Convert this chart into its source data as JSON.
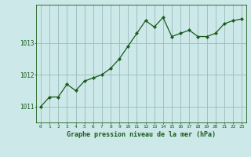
{
  "x": [
    0,
    1,
    2,
    3,
    4,
    5,
    6,
    7,
    8,
    9,
    10,
    11,
    12,
    13,
    14,
    15,
    16,
    17,
    18,
    19,
    20,
    21,
    22,
    23
  ],
  "y": [
    1011.0,
    1011.3,
    1011.3,
    1011.7,
    1011.5,
    1011.8,
    1011.9,
    1012.0,
    1012.2,
    1012.5,
    1012.9,
    1013.3,
    1013.7,
    1013.5,
    1013.8,
    1013.2,
    1013.3,
    1013.4,
    1013.2,
    1013.2,
    1013.3,
    1013.6,
    1013.7,
    1013.75
  ],
  "line_color": "#1a5c1a",
  "marker_color": "#1a5c1a",
  "bg_color": "#cce8e8",
  "grid_color": "#99bbbb",
  "xlabel": "Graphe pression niveau de la mer (hPa)",
  "xlabel_color": "#1a5c1a",
  "tick_color": "#1a5c1a",
  "yticks": [
    1011,
    1012,
    1013
  ],
  "ylim": [
    1010.5,
    1014.2
  ],
  "xlim": [
    -0.5,
    23.5
  ],
  "xtick_labels": [
    "0",
    "1",
    "2",
    "3",
    "4",
    "5",
    "6",
    "7",
    "8",
    "9",
    "10",
    "11",
    "12",
    "13",
    "14",
    "15",
    "16",
    "17",
    "18",
    "19",
    "20",
    "21",
    "22",
    "23"
  ]
}
